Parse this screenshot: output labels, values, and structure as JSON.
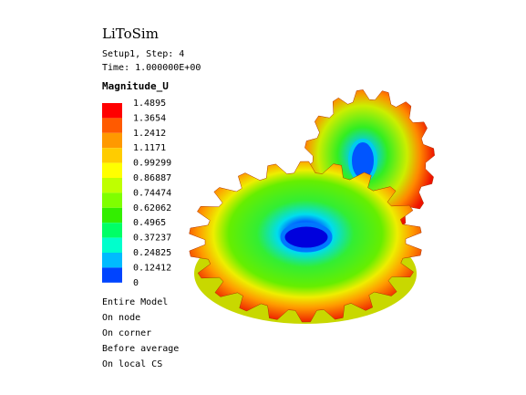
{
  "header": {
    "title": "LiToSim",
    "setup": "Setup1, Step: 4",
    "time": "Time: 1.000000E+00"
  },
  "legend": {
    "title": "Magnitude_U",
    "labels": [
      "1.4895",
      "1.3654",
      "1.2412",
      "1.1171",
      "0.99299",
      "0.86887",
      "0.74474",
      "0.62062",
      "0.4965",
      "0.37237",
      "0.24825",
      "0.12412",
      "0"
    ],
    "colors": [
      "#ff0000",
      "#ff5a00",
      "#ff9900",
      "#ffcc00",
      "#ffff00",
      "#bfff00",
      "#7fff00",
      "#33ee00",
      "#00ff66",
      "#00ffcc",
      "#00bbff",
      "#0044ff"
    ]
  },
  "notes": [
    "Entire Model",
    "On node",
    "On corner",
    "Before average",
    "On local CS"
  ]
}
